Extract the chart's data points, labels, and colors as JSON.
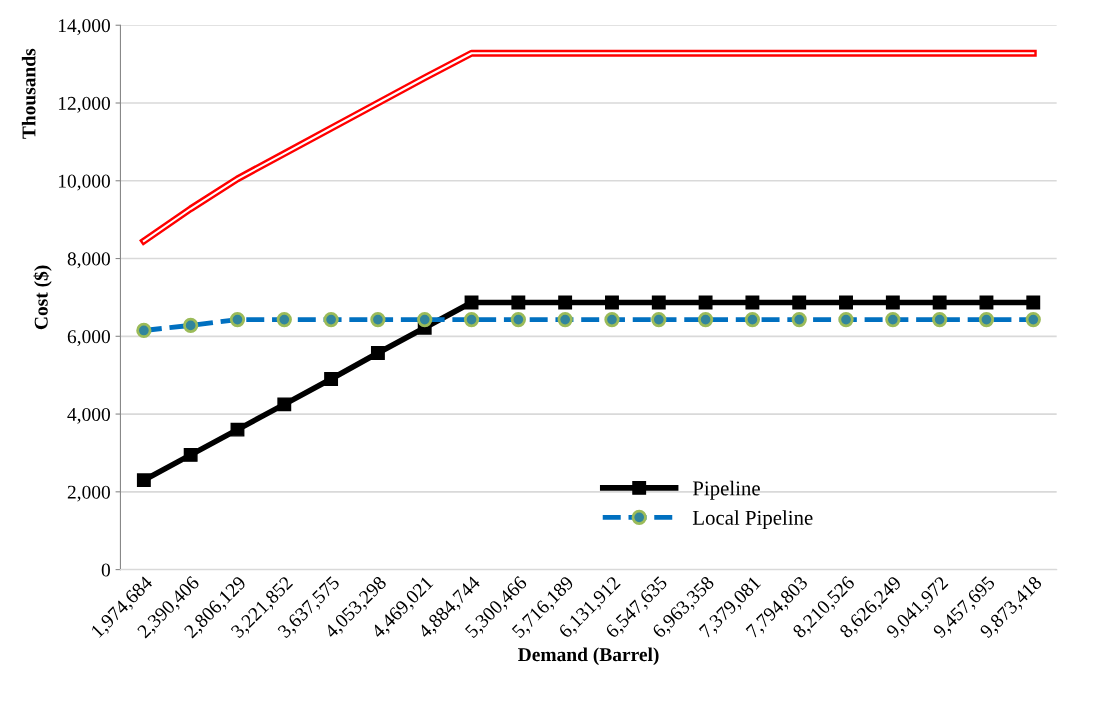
{
  "chart_data": {
    "type": "line",
    "xlabel": "Demand (Barrel)",
    "ylabel": "Cost ($)",
    "annotations": [
      "Thousands"
    ],
    "categories": [
      "1,974,684",
      "2,390,406",
      "2,806,129",
      "3,221,852",
      "3,637,575",
      "4,053,298",
      "4,469,021",
      "4,884,744",
      "5,300,466",
      "5,716,189",
      "6,131,912",
      "6,547,635",
      "6,963,358",
      "7,379,081",
      "7,794,803",
      "8,210,526",
      "8,626,249",
      "9,041,972",
      "9,457,695",
      "9,873,418"
    ],
    "series": [
      {
        "color": "#ff0000",
        "marker": "none",
        "line_style": "solid",
        "values": [
          8450,
          9280,
          10050,
          10700,
          11350,
          12000,
          12650,
          13280,
          13280,
          13280,
          13280,
          13280,
          13280,
          13280,
          13280,
          13280,
          13280,
          13280,
          13280,
          13280
        ]
      },
      {
        "name": "Pipeline",
        "color": "#000000",
        "marker": "square",
        "line_style": "solid",
        "values": [
          2300,
          2950,
          3600,
          4250,
          4900,
          5570,
          6220,
          6870,
          6870,
          6870,
          6870,
          6870,
          6870,
          6870,
          6870,
          6870,
          6870,
          6870,
          6870,
          6870
        ]
      },
      {
        "name": "Local Pipeline",
        "color": "#0070c0",
        "marker": "circle",
        "line_style": "dashed",
        "values": [
          6150,
          6280,
          6430,
          6430,
          6430,
          6430,
          6430,
          6430,
          6430,
          6430,
          6430,
          6430,
          6430,
          6430,
          6430,
          6430,
          6430,
          6430,
          6430,
          6430
        ]
      }
    ],
    "ylim": [
      0,
      14000
    ],
    "yticks": [
      0,
      {
        "value": 2000,
        "label": "2,000"
      },
      {
        "value": 4000,
        "label": "4,000"
      },
      {
        "value": 6000,
        "label": "6,000"
      },
      {
        "value": 8000,
        "label": "8,000"
      },
      {
        "value": 10000,
        "label": "10,000"
      },
      {
        "value": 12000,
        "label": "12,000"
      },
      {
        "value": 14000,
        "label": "14,000"
      }
    ],
    "grid": "y",
    "legend": "bottom right"
  }
}
